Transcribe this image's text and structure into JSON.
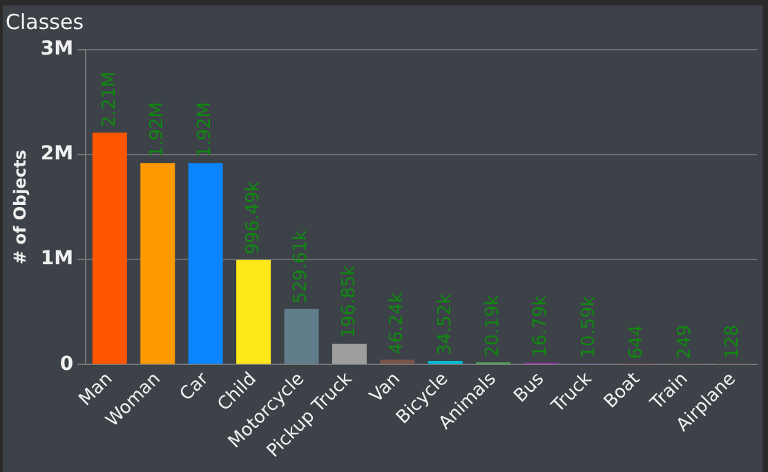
{
  "chart_data": {
    "type": "bar",
    "title": "Classes",
    "ylabel": "# of Objects",
    "categories": [
      "Man",
      "Woman",
      "Car",
      "Child",
      "Motorcycle",
      "Pickup Truck",
      "Van",
      "Bicycle",
      "Animals",
      "Bus",
      "Truck",
      "Boat",
      "Train",
      "Airplane"
    ],
    "values": [
      2210000,
      1920000,
      1920000,
      996490,
      529610,
      196850,
      46240,
      34520,
      20190,
      16790,
      10590,
      644,
      249,
      128
    ],
    "value_labels": [
      "2.21M",
      "1.92M",
      "1.92M",
      "996.49k",
      "529.61k",
      "196.85k",
      "46.24k",
      "34.52k",
      "20.19k",
      "16.79k",
      "10.59k",
      "644",
      "249",
      "128"
    ],
    "colors": [
      "#ff5500",
      "#ff9900",
      "#0a84ff",
      "#ffe81a",
      "#607d8b",
      "#9e9e9e",
      "#795548",
      "#00bcd4",
      "#4caf50",
      "#9c27b0",
      "#3f51b5",
      "#8d4f4f",
      "#7a5a5a",
      "#6d5050"
    ],
    "ylim": [
      0,
      3000000
    ],
    "yticks": [
      0,
      {
        "value": 1000000,
        "label": "1M"
      },
      {
        "value": 2000000,
        "label": "2M"
      },
      {
        "value": 3000000,
        "label": "3M"
      }
    ],
    "grid": "y",
    "legend": false
  }
}
